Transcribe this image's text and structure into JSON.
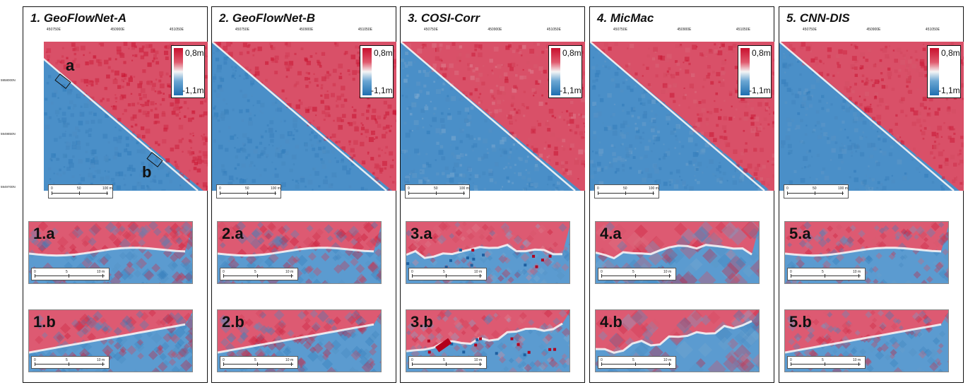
{
  "panels": [
    {
      "title": "1. GeoFlowNet-A",
      "zoom_a": "1.a",
      "zoom_b": "1.b",
      "style": "smooth",
      "speckle": 0.05
    },
    {
      "title": "2. GeoFlowNet-B",
      "zoom_a": "2.a",
      "zoom_b": "2.b",
      "style": "smooth",
      "speckle": 0.06
    },
    {
      "title": "3. COSI-Corr",
      "zoom_a": "3.a",
      "zoom_b": "3.b",
      "style": "noisy",
      "speckle": 0.35
    },
    {
      "title": "4. MicMac",
      "zoom_a": "4.a",
      "zoom_b": "4.b",
      "style": "blocky",
      "speckle": 0.25
    },
    {
      "title": "5. CNN-DIS",
      "zoom_a": "5.a",
      "zoom_b": "5.b",
      "style": "mid",
      "speckle": 0.18
    }
  ],
  "legend": {
    "max": "0,8m",
    "min": "-1,1m",
    "color_max": "#c8102e",
    "color_mid": "#f5f5f5",
    "color_min": "#1f6fb0"
  },
  "map_ticks": {
    "x": [
      "450750E",
      "450900E",
      "451050E"
    ],
    "y": [
      "5958000N",
      "5949850N",
      "5949700N"
    ]
  },
  "map_scale": {
    "labels": [
      "0",
      "50",
      "100 m"
    ]
  },
  "zoom_scale": {
    "labels": [
      "0",
      "5",
      "10 m"
    ]
  },
  "annotations": {
    "a": "a",
    "b": "b"
  }
}
